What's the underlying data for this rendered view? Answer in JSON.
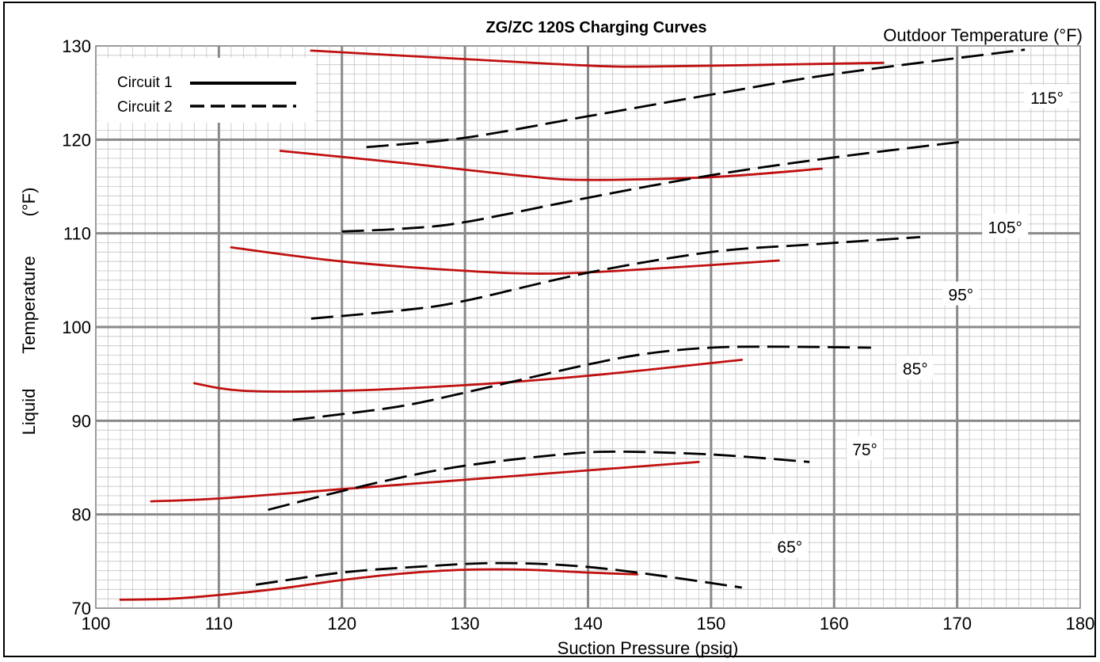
{
  "chart_data": {
    "type": "line",
    "title": "ZG/ZC 120S Charging Curves",
    "xlabel": "Suction Pressure (psig)",
    "ylabel_parts": [
      "Liquid",
      "Temperature",
      "(°F)"
    ],
    "outdoor_label": "Outdoor Temperature (°F)",
    "xlim": [
      100,
      180
    ],
    "ylim": [
      70,
      130
    ],
    "x_ticks": [
      100,
      110,
      120,
      130,
      140,
      150,
      160,
      170,
      180
    ],
    "y_ticks": [
      70,
      80,
      90,
      100,
      110,
      120,
      130
    ],
    "grid": true,
    "legend": {
      "placement": "top-left",
      "entries": [
        {
          "name": "Circuit 1",
          "style": "solid"
        },
        {
          "name": "Circuit 2",
          "style": "dashed"
        }
      ]
    },
    "colors": {
      "circuit1": "#c01010",
      "circuit2": "#000000",
      "grid_major": "#8a8a8a",
      "grid_minor": "#c4c4c4"
    },
    "temperature_labels": [
      {
        "text": "115°",
        "x": 177.3,
        "y": 124.5
      },
      {
        "text": "105°",
        "x": 173.9,
        "y": 110.7
      },
      {
        "text": "95°",
        "x": 170.3,
        "y": 103.5
      },
      {
        "text": "85°",
        "x": 166.6,
        "y": 95.6
      },
      {
        "text": "75°",
        "x": 162.5,
        "y": 87.0
      },
      {
        "text": "65°",
        "x": 156.4,
        "y": 76.6
      }
    ],
    "series": [
      {
        "name": "Circuit 1",
        "group": "115°",
        "style": "solid",
        "points": [
          [
            117.5,
            129.5
          ],
          [
            130,
            128.6
          ],
          [
            140,
            127.9
          ],
          [
            145,
            127.8
          ],
          [
            155,
            128.0
          ],
          [
            164,
            128.2
          ]
        ]
      },
      {
        "name": "Circuit 2",
        "group": "115°",
        "style": "dashed",
        "points": [
          [
            122,
            119.2
          ],
          [
            130,
            120.2
          ],
          [
            140,
            122.5
          ],
          [
            150,
            124.8
          ],
          [
            160,
            127.0
          ],
          [
            175.5,
            129.6
          ]
        ]
      },
      {
        "name": "Circuit 1",
        "group": "105°",
        "style": "solid",
        "points": [
          [
            115,
            118.8
          ],
          [
            125,
            117.5
          ],
          [
            135,
            116.1
          ],
          [
            140,
            115.7
          ],
          [
            150,
            116.0
          ],
          [
            159,
            116.9
          ]
        ]
      },
      {
        "name": "Circuit 2",
        "group": "105°",
        "style": "dashed",
        "points": [
          [
            120,
            110.2
          ],
          [
            125,
            110.5
          ],
          [
            130,
            111.2
          ],
          [
            140,
            113.8
          ],
          [
            150,
            116.2
          ],
          [
            160,
            118.1
          ],
          [
            170.5,
            119.8
          ]
        ]
      },
      {
        "name": "Circuit 1",
        "group": "95°",
        "style": "solid",
        "points": [
          [
            111,
            108.5
          ],
          [
            120,
            107.0
          ],
          [
            130,
            106.0
          ],
          [
            137,
            105.7
          ],
          [
            145,
            106.2
          ],
          [
            155.5,
            107.1
          ]
        ]
      },
      {
        "name": "Circuit 2",
        "group": "95°",
        "style": "dashed",
        "points": [
          [
            117.5,
            100.9
          ],
          [
            125,
            101.8
          ],
          [
            130,
            102.8
          ],
          [
            140,
            105.8
          ],
          [
            150,
            108.0
          ],
          [
            158,
            108.8
          ],
          [
            167,
            109.6
          ]
        ]
      },
      {
        "name": "Circuit 1",
        "group": "85°",
        "style": "solid",
        "points": [
          [
            108,
            94.0
          ],
          [
            112,
            93.2
          ],
          [
            120,
            93.2
          ],
          [
            130,
            93.8
          ],
          [
            140,
            94.8
          ],
          [
            152.5,
            96.5
          ]
        ]
      },
      {
        "name": "Circuit 2",
        "group": "85°",
        "style": "dashed",
        "points": [
          [
            116,
            90.1
          ],
          [
            120,
            90.7
          ],
          [
            125,
            91.6
          ],
          [
            130,
            93.0
          ],
          [
            140,
            96.0
          ],
          [
            145,
            97.2
          ],
          [
            150,
            97.8
          ],
          [
            155,
            97.9
          ],
          [
            163,
            97.8
          ]
        ]
      },
      {
        "name": "Circuit 1",
        "group": "75°",
        "style": "solid",
        "points": [
          [
            104.5,
            81.4
          ],
          [
            110,
            81.7
          ],
          [
            120,
            82.7
          ],
          [
            130,
            83.7
          ],
          [
            140,
            84.7
          ],
          [
            149,
            85.6
          ]
        ]
      },
      {
        "name": "Circuit 2",
        "group": "75°",
        "style": "dashed",
        "points": [
          [
            114,
            80.5
          ],
          [
            120,
            82.5
          ],
          [
            125,
            84.0
          ],
          [
            130,
            85.2
          ],
          [
            137,
            86.3
          ],
          [
            142,
            86.7
          ],
          [
            150,
            86.4
          ],
          [
            158,
            85.6
          ]
        ]
      },
      {
        "name": "Circuit 1",
        "group": "65°",
        "style": "solid",
        "points": [
          [
            102,
            70.9
          ],
          [
            106,
            71.0
          ],
          [
            110,
            71.4
          ],
          [
            115,
            72.1
          ],
          [
            120,
            73.0
          ],
          [
            125,
            73.7
          ],
          [
            130,
            74.1
          ],
          [
            135,
            74.1
          ],
          [
            140,
            73.8
          ],
          [
            144,
            73.6
          ]
        ]
      },
      {
        "name": "Circuit 2",
        "group": "65°",
        "style": "dashed",
        "points": [
          [
            113,
            72.5
          ],
          [
            120,
            73.8
          ],
          [
            126,
            74.4
          ],
          [
            132,
            74.8
          ],
          [
            138,
            74.6
          ],
          [
            144,
            73.8
          ],
          [
            152.5,
            72.2
          ]
        ]
      }
    ]
  }
}
